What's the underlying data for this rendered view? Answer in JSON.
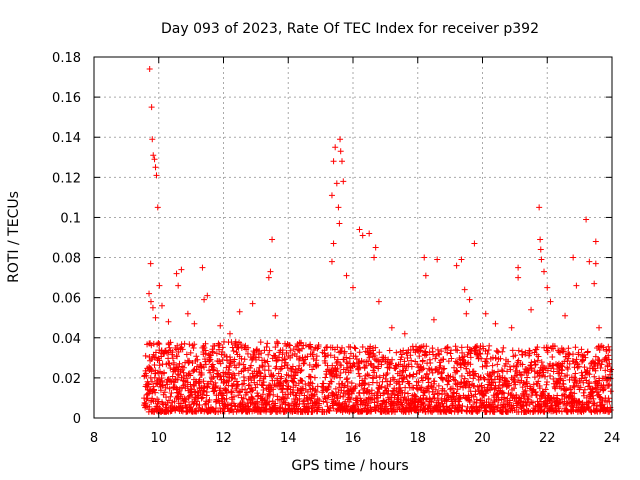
{
  "chart_data": {
    "type": "scatter",
    "title": "Day 093 of 2023, Rate Of TEC Index for receiver p392",
    "xlabel": "GPS time / hours",
    "ylabel": "ROTI / TECUs",
    "xlim": [
      8,
      24
    ],
    "ylim": [
      0,
      0.18
    ],
    "xticks": [
      8,
      10,
      12,
      14,
      16,
      18,
      20,
      22,
      24
    ],
    "yticks": [
      0,
      0.02,
      0.04,
      0.06,
      0.08,
      0.1,
      0.12,
      0.14,
      0.16,
      0.18
    ],
    "xtick_labels": [
      "8",
      "10",
      "12",
      "14",
      "16",
      "18",
      "20",
      "22",
      "24"
    ],
    "ytick_labels": [
      "0",
      "0.02",
      "0.04",
      "0.06",
      "0.08",
      "0.1",
      "0.12",
      "0.14",
      "0.16",
      "0.18"
    ],
    "grid": true,
    "marker": "+",
    "color": "#ff0000",
    "series": [
      {
        "name": "ROTI",
        "points": [
          [
            9.72,
            0.174
          ],
          [
            9.78,
            0.155
          ],
          [
            9.8,
            0.139
          ],
          [
            9.83,
            0.131
          ],
          [
            9.87,
            0.129
          ],
          [
            9.9,
            0.125
          ],
          [
            9.93,
            0.121
          ],
          [
            9.97,
            0.105
          ],
          [
            9.75,
            0.077
          ],
          [
            9.7,
            0.062
          ],
          [
            9.76,
            0.058
          ],
          [
            9.82,
            0.055
          ],
          [
            9.9,
            0.05
          ],
          [
            10.02,
            0.066
          ],
          [
            10.1,
            0.056
          ],
          [
            10.3,
            0.048
          ],
          [
            10.55,
            0.072
          ],
          [
            10.7,
            0.074
          ],
          [
            10.6,
            0.066
          ],
          [
            10.9,
            0.052
          ],
          [
            11.1,
            0.047
          ],
          [
            11.35,
            0.075
          ],
          [
            11.5,
            0.061
          ],
          [
            11.4,
            0.059
          ],
          [
            11.9,
            0.046
          ],
          [
            12.2,
            0.042
          ],
          [
            12.5,
            0.053
          ],
          [
            12.9,
            0.057
          ],
          [
            13.5,
            0.089
          ],
          [
            13.45,
            0.073
          ],
          [
            13.4,
            0.07
          ],
          [
            13.6,
            0.051
          ],
          [
            13.9,
            0.037
          ],
          [
            14.3,
            0.034
          ],
          [
            14.7,
            0.035
          ],
          [
            15.45,
            0.135
          ],
          [
            15.4,
            0.128
          ],
          [
            15.5,
            0.117
          ],
          [
            15.35,
            0.111
          ],
          [
            15.6,
            0.139
          ],
          [
            15.62,
            0.133
          ],
          [
            15.66,
            0.128
          ],
          [
            15.7,
            0.118
          ],
          [
            15.55,
            0.105
          ],
          [
            15.58,
            0.097
          ],
          [
            15.4,
            0.087
          ],
          [
            15.35,
            0.078
          ],
          [
            15.8,
            0.071
          ],
          [
            16.0,
            0.065
          ],
          [
            16.2,
            0.094
          ],
          [
            16.3,
            0.091
          ],
          [
            16.5,
            0.092
          ],
          [
            16.65,
            0.08
          ],
          [
            16.7,
            0.085
          ],
          [
            16.8,
            0.058
          ],
          [
            17.2,
            0.045
          ],
          [
            17.6,
            0.042
          ],
          [
            18.2,
            0.08
          ],
          [
            18.25,
            0.071
          ],
          [
            18.6,
            0.079
          ],
          [
            18.5,
            0.049
          ],
          [
            19.2,
            0.076
          ],
          [
            19.35,
            0.079
          ],
          [
            19.45,
            0.064
          ],
          [
            19.6,
            0.059
          ],
          [
            19.75,
            0.087
          ],
          [
            19.5,
            0.052
          ],
          [
            20.1,
            0.052
          ],
          [
            20.4,
            0.047
          ],
          [
            20.9,
            0.045
          ],
          [
            21.1,
            0.075
          ],
          [
            21.1,
            0.07
          ],
          [
            21.5,
            0.054
          ],
          [
            21.75,
            0.105
          ],
          [
            21.78,
            0.089
          ],
          [
            21.8,
            0.084
          ],
          [
            21.82,
            0.079
          ],
          [
            21.9,
            0.073
          ],
          [
            22.0,
            0.065
          ],
          [
            22.1,
            0.058
          ],
          [
            22.55,
            0.051
          ],
          [
            22.8,
            0.08
          ],
          [
            22.9,
            0.066
          ],
          [
            23.2,
            0.099
          ],
          [
            23.3,
            0.078
          ],
          [
            23.5,
            0.088
          ],
          [
            23.5,
            0.077
          ],
          [
            23.45,
            0.067
          ],
          [
            23.6,
            0.045
          ],
          [
            23.8,
            0.03
          ]
        ]
      }
    ],
    "bulk_bands": [
      {
        "x": [
          9.55,
          14.95
        ],
        "low": 0.003,
        "high": 0.038
      },
      {
        "x": [
          15.05,
          23.98
        ],
        "low": 0.003,
        "high": 0.036
      }
    ]
  }
}
